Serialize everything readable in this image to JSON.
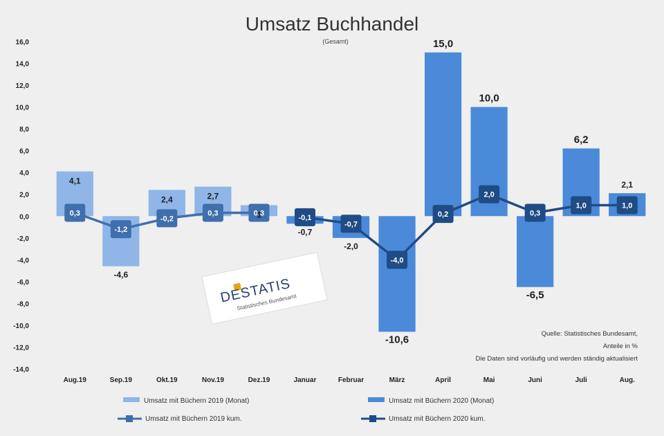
{
  "chart_data": {
    "type": "bar",
    "title": "Umsatz Buchhandel",
    "subtitle": "(Gesamt)",
    "categories": [
      "Aug.19",
      "Sep.19",
      "Okt.19",
      "Nov.19",
      "Dez.19",
      "Januar",
      "Februar",
      "März",
      "April",
      "Mai",
      "Juni",
      "Juli",
      "Aug."
    ],
    "y_ticks": [
      "16,0",
      "14,0",
      "12,0",
      "10,0",
      "8,0",
      "6,0",
      "4,0",
      "2,0",
      "0,0",
      "-2,0",
      "-4,0",
      "-6,0",
      "-8,0",
      "-10,0",
      "-12,0",
      "-14,0"
    ],
    "ylim": [
      -14,
      16
    ],
    "series": [
      {
        "name": "Umsatz mit Büchern 2019 (Monat)",
        "kind": "bar",
        "color": "#8fb6e6",
        "values": [
          4.1,
          -4.6,
          2.4,
          2.7,
          1.0,
          null,
          null,
          null,
          null,
          null,
          null,
          null,
          null
        ],
        "labels": [
          "4,1",
          "-4,6",
          "2,4",
          "2,7",
          "1",
          "",
          "",
          "",
          "",
          "",
          "",
          "",
          ""
        ]
      },
      {
        "name": "Umsatz mit Büchern 2020 (Monat)",
        "kind": "bar",
        "color": "#4a8ad8",
        "values": [
          null,
          null,
          null,
          null,
          null,
          -0.7,
          -2.0,
          -10.6,
          15.0,
          10.0,
          -6.5,
          6.2,
          2.1
        ],
        "labels": [
          "",
          "",
          "",
          "",
          "",
          "-0,7",
          "-2,0",
          "-10,6",
          "15,0",
          "10,0",
          "-6,5",
          "6,2",
          "2,1"
        ]
      },
      {
        "name": "Umsatz mit Büchern 2019 kum.",
        "kind": "line",
        "color": "#3f6fad",
        "values": [
          0.3,
          -1.2,
          -0.2,
          0.3,
          0.3,
          null,
          null,
          null,
          null,
          null,
          null,
          null,
          null
        ],
        "labels": [
          "0,3",
          "-1,2",
          "-0,2",
          "0,3",
          "0,3",
          "",
          "",
          "",
          "",
          "",
          "",
          "",
          ""
        ]
      },
      {
        "name": "Umsatz mit Büchern 2020 kum.",
        "kind": "line",
        "color": "#1f4c85",
        "values": [
          null,
          null,
          null,
          null,
          null,
          -0.1,
          -0.7,
          -4.0,
          0.2,
          2.0,
          0.3,
          1.0,
          1.0
        ],
        "labels": [
          "",
          "",
          "",
          "",
          "",
          "-0,1",
          "-0,7",
          "-4,0",
          "0,2",
          "2,0",
          "0,3",
          "1,0",
          "1,0"
        ]
      }
    ],
    "grid": false,
    "legend_position": "bottom"
  },
  "notes": {
    "source": "Quelle: Statistisches Bundesamt,",
    "detail": "Anteile in %",
    "disclaimer": "Die Daten sind vorläufig und werden ständig aktualisiert"
  },
  "logo": {
    "text": "DESTATIS",
    "sub": "Statistisches Bundesamt",
    "accent_color": "#e3a51a"
  },
  "colors": {
    "background": "#efefef",
    "bar_2019": "#8fb6e6",
    "bar_2020": "#4a8ad8",
    "line_2019": "#3f6fad",
    "line_2020": "#1f4c85"
  }
}
